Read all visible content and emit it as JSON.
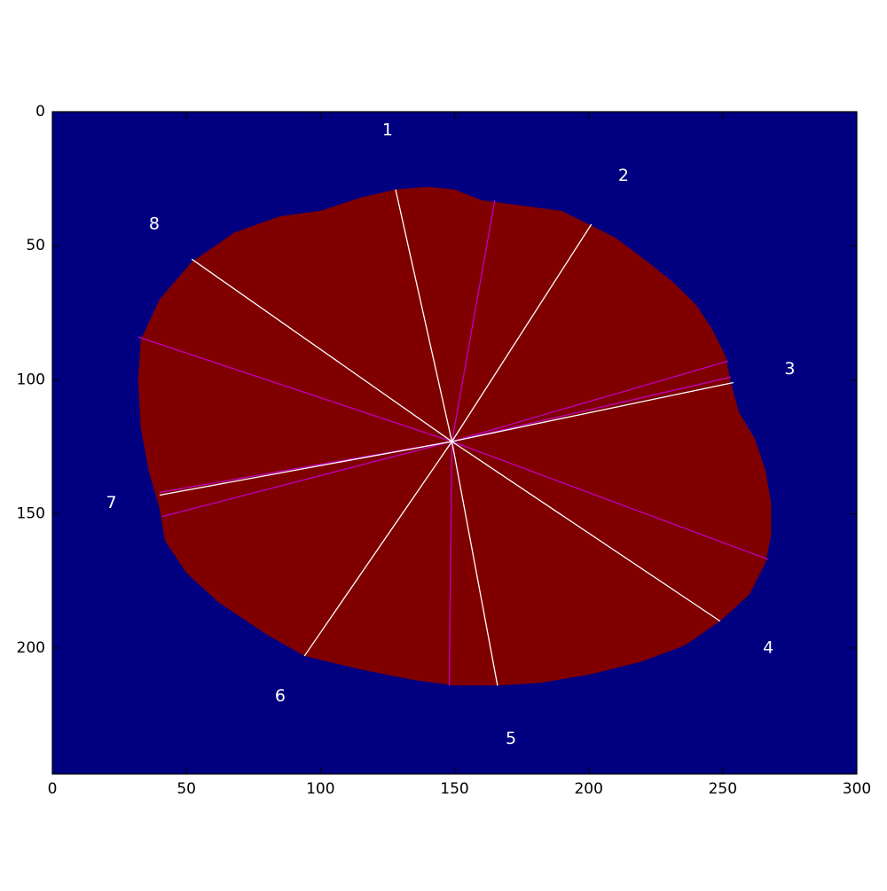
{
  "chart_data": {
    "type": "image",
    "title": "",
    "xlabel": "",
    "ylabel": "",
    "xlim": [
      0,
      300
    ],
    "ylim": [
      247,
      0
    ],
    "x_ticks": [
      0,
      50,
      100,
      150,
      200,
      250,
      300
    ],
    "y_ticks": [
      0,
      50,
      100,
      150,
      200
    ],
    "grid": false,
    "colors": {
      "background": "#000080",
      "region": "#800000",
      "boundary_lines": "#ffffff",
      "bisector_lines": "#c000c0",
      "label_text": "#ffffff"
    },
    "center": [
      149,
      123
    ],
    "region_outline": [
      [
        128,
        29
      ],
      [
        140,
        28
      ],
      [
        150,
        29
      ],
      [
        160,
        33
      ],
      [
        175,
        35
      ],
      [
        190,
        37
      ],
      [
        200,
        42
      ],
      [
        210,
        47
      ],
      [
        222,
        56
      ],
      [
        232,
        64
      ],
      [
        240,
        72
      ],
      [
        246,
        81
      ],
      [
        251,
        91
      ],
      [
        253,
        101
      ],
      [
        256,
        112
      ],
      [
        262,
        122
      ],
      [
        266,
        134
      ],
      [
        268,
        146
      ],
      [
        268,
        158
      ],
      [
        266,
        168
      ],
      [
        260,
        180
      ],
      [
        249,
        190
      ],
      [
        236,
        199
      ],
      [
        220,
        205
      ],
      [
        200,
        210
      ],
      [
        182,
        213
      ],
      [
        166,
        214
      ],
      [
        150,
        214
      ],
      [
        135,
        212
      ],
      [
        115,
        208
      ],
      [
        94,
        203
      ],
      [
        80,
        195
      ],
      [
        62,
        183
      ],
      [
        50,
        172
      ],
      [
        42,
        160
      ],
      [
        40,
        148
      ],
      [
        36,
        134
      ],
      [
        33,
        118
      ],
      [
        32,
        100
      ],
      [
        33,
        85
      ],
      [
        40,
        70
      ],
      [
        52,
        56
      ],
      [
        68,
        45
      ],
      [
        85,
        39
      ],
      [
        100,
        37
      ],
      [
        115,
        32
      ]
    ],
    "boundary_lines": [
      {
        "end": [
          128,
          29
        ]
      },
      {
        "end": [
          201,
          42
        ]
      },
      {
        "end": [
          254,
          101
        ]
      },
      {
        "end": [
          249,
          190
        ]
      },
      {
        "end": [
          166,
          214
        ]
      },
      {
        "end": [
          94,
          203
        ]
      },
      {
        "end": [
          40,
          143
        ]
      },
      {
        "end": [
          52,
          55
        ]
      }
    ],
    "bisector_lines": [
      {
        "end": [
          165,
          33
        ]
      },
      {
        "end": [
          252,
          93
        ]
      },
      {
        "end": [
          267,
          167
        ]
      },
      {
        "end": [
          148,
          214
        ]
      },
      {
        "end": [
          41,
          151
        ]
      },
      {
        "end": [
          32,
          84
        ]
      },
      {
        "end": [
          253,
          99
        ]
      },
      {
        "end": [
          40,
          142
        ]
      }
    ],
    "sector_labels": [
      {
        "text": "1",
        "x": 125,
        "y": 7
      },
      {
        "text": "2",
        "x": 213,
        "y": 24
      },
      {
        "text": "3",
        "x": 275,
        "y": 96
      },
      {
        "text": "4",
        "x": 267,
        "y": 200
      },
      {
        "text": "5",
        "x": 171,
        "y": 234
      },
      {
        "text": "6",
        "x": 85,
        "y": 218
      },
      {
        "text": "7",
        "x": 22,
        "y": 146
      },
      {
        "text": "8",
        "x": 38,
        "y": 42
      }
    ]
  }
}
